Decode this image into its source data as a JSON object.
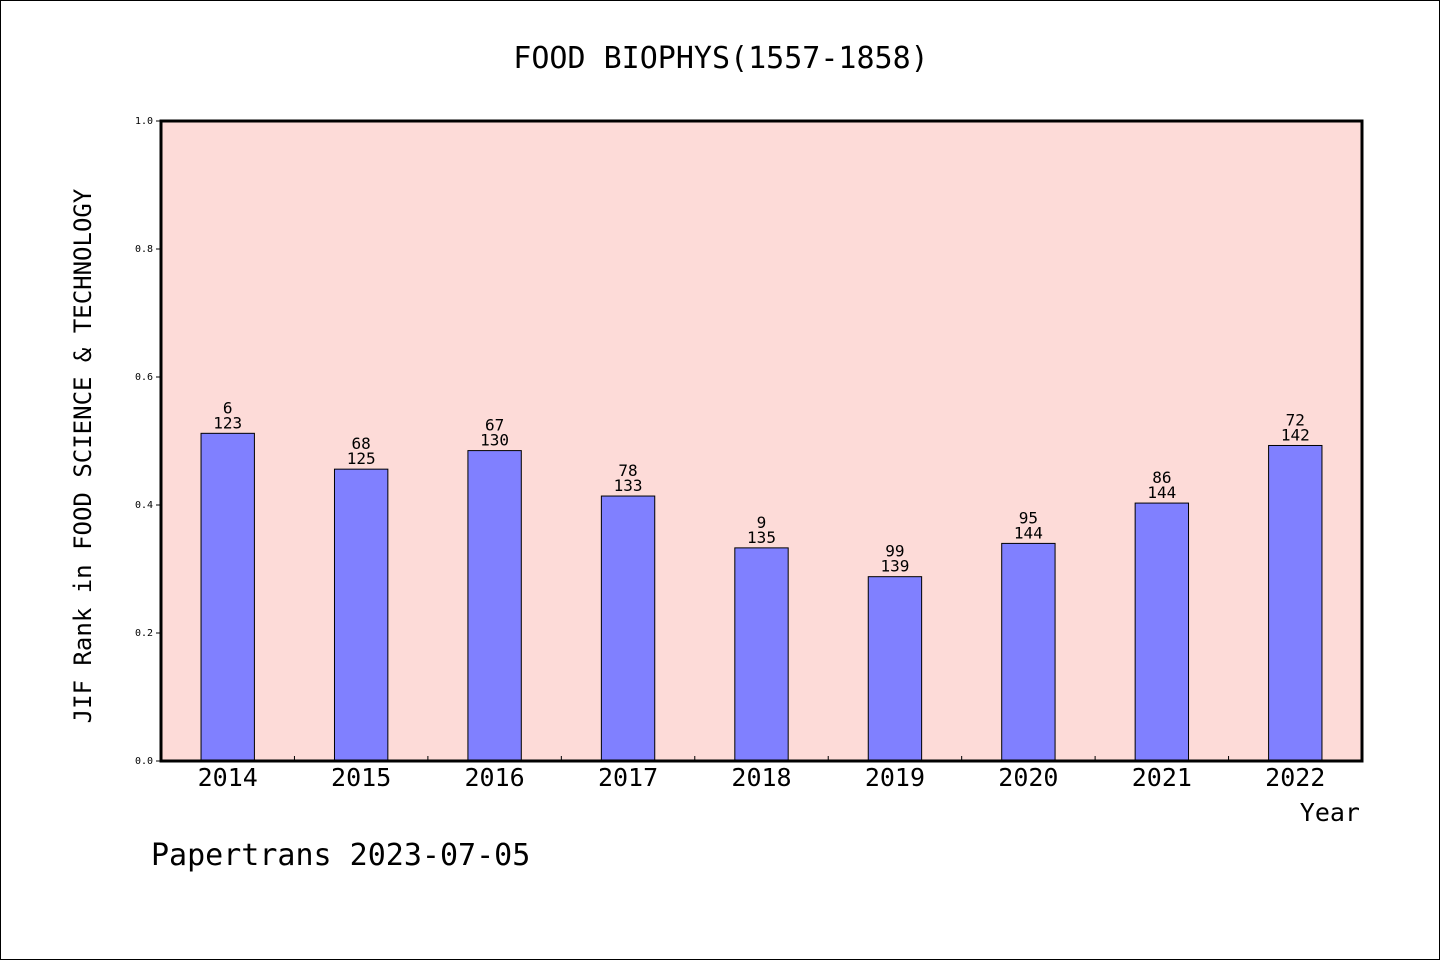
{
  "chart_data": {
    "type": "bar",
    "title": "FOOD BIOPHYS(1557-1858)",
    "xlabel": "Year",
    "ylabel": "JIF Rank in FOOD SCIENCE & TECHNOLOGY",
    "ylim": [
      0,
      1.0
    ],
    "yticks": [
      "0.0",
      "0.2",
      "0.4",
      "0.6",
      "0.8",
      "1.0"
    ],
    "categories": [
      "2014",
      "2015",
      "2016",
      "2017",
      "2018",
      "2019",
      "2020",
      "2021",
      "2022"
    ],
    "values": [
      0.512,
      0.456,
      0.485,
      0.414,
      0.333,
      0.288,
      0.34,
      0.403,
      0.493
    ],
    "labels_top": [
      "6",
      "68",
      "67",
      "78",
      "9",
      "99",
      "95",
      "86",
      "72"
    ],
    "labels_bottom": [
      "123",
      "125",
      "130",
      "133",
      "135",
      "139",
      "144",
      "144",
      "142"
    ],
    "bar_color": "#8080ff",
    "plot_background": "#fddbd8",
    "grid": false
  },
  "footer": "Papertrans 2023-07-05"
}
